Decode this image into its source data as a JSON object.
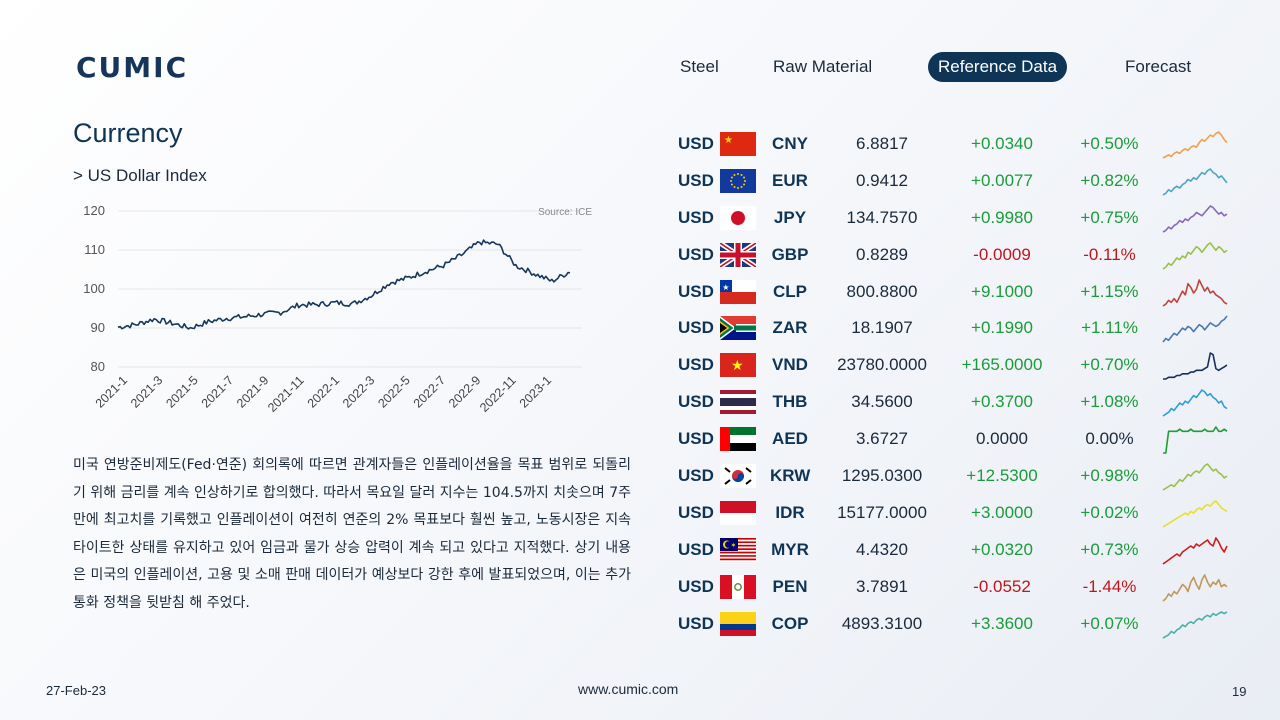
{
  "brand": {
    "name": "CUMIC",
    "color": "#16355a"
  },
  "nav": {
    "items": [
      {
        "label": "Steel",
        "active": false
      },
      {
        "label": "Raw Material",
        "active": false
      },
      {
        "label": "Reference Data",
        "active": true
      },
      {
        "label": "Forecast",
        "active": false
      }
    ]
  },
  "section": {
    "title": "Currency",
    "subtitle": "> US Dollar Index"
  },
  "chart_data": {
    "type": "line",
    "title": "",
    "source": "Source: ICE",
    "xlabel": "",
    "ylabel": "",
    "ylim": [
      80,
      120
    ],
    "yticks": [
      "80",
      "90",
      "100",
      "110",
      "120"
    ],
    "xticks": [
      "2021-1",
      "2021-3",
      "2021-5",
      "2021-7",
      "2021-9",
      "2021-11",
      "2022-1",
      "2022-3",
      "2022-5",
      "2022-7",
      "2022-9",
      "2022-11",
      "2023-1"
    ],
    "grid": true,
    "color": "#16385a",
    "series": [
      {
        "name": "",
        "x": [
          "2021-01",
          "2021-02",
          "2021-03",
          "2021-04",
          "2021-05",
          "2021-06",
          "2021-07",
          "2021-08",
          "2021-09",
          "2021-10",
          "2021-11",
          "2021-12",
          "2022-01",
          "2022-02",
          "2022-03",
          "2022-04",
          "2022-05",
          "2022-06",
          "2022-07",
          "2022-08",
          "2022-09",
          "2022-10",
          "2022-11",
          "2022-12",
          "2023-01",
          "2023-02"
        ],
        "values": [
          90.2,
          90.9,
          92.3,
          91.2,
          90.0,
          91.6,
          92.5,
          92.9,
          93.5,
          94.0,
          95.9,
          96.0,
          96.5,
          96.2,
          98.3,
          101.5,
          102.8,
          104.5,
          106.0,
          108.7,
          112.0,
          111.5,
          106.0,
          104.0,
          102.0,
          104.5
        ]
      }
    ]
  },
  "body_text": "미국 연방준비제도(Fed·연준) 회의록에 따르면 관계자들은 인플레이션율을 목표 범위로 되돌리기 위해 금리를 계속 인상하기로 합의했다. 따라서 목요일 달러 지수는 104.5까지 치솟으며 7주 만에 최고치를 기록했고 인플레이션이 여전히 연준의 2% 목표보다 훨씬 높고, 노동시장은 지속 타이트한 상태를 유지하고 있어 임금과 물가 상승 압력이 계속 되고 있다고 지적했다. 상기 내용은 미국의 인플레이션, 고용 및 소매 판매 데이터가 예상보다 강한 후에 발표되었으며, 이는 추가 통화 정책을 뒷받침 해 주었다.",
  "colors": {
    "up": "#1a9c3a",
    "down": "#c0161b",
    "neutral": "#1b2a3a"
  },
  "fx": [
    {
      "base": "USD",
      "quote": "CNY",
      "flag": "cn",
      "rate": "6.8817",
      "change": "+0.0340",
      "pct": "+0.50%",
      "trend": "up",
      "spark_color": "#f0a04b",
      "spark": [
        2,
        3,
        4,
        3,
        5,
        6,
        5,
        7,
        8,
        7,
        9,
        10,
        9,
        12,
        14,
        13,
        15,
        17,
        16,
        18,
        19,
        17,
        14,
        12
      ]
    },
    {
      "base": "USD",
      "quote": "EUR",
      "flag": "eu",
      "rate": "0.9412",
      "change": "+0.0077",
      "pct": "+0.82%",
      "trend": "up",
      "spark_color": "#4aa6c6",
      "spark": [
        3,
        4,
        6,
        5,
        7,
        8,
        7,
        9,
        10,
        12,
        11,
        13,
        12,
        14,
        16,
        15,
        17,
        18,
        16,
        15,
        13,
        14,
        12,
        10
      ]
    },
    {
      "base": "USD",
      "quote": "JPY",
      "flag": "jp",
      "rate": "134.7570",
      "change": "+0.9980",
      "pct": "+0.75%",
      "trend": "up",
      "spark_color": "#8a68b8",
      "spark": [
        2,
        3,
        5,
        4,
        6,
        7,
        9,
        8,
        10,
        9,
        11,
        12,
        14,
        13,
        12,
        14,
        16,
        18,
        17,
        15,
        13,
        14,
        12,
        13
      ]
    },
    {
      "base": "USD",
      "quote": "GBP",
      "flag": "gb",
      "rate": "0.8289",
      "change": "-0.0009",
      "pct": "-0.11%",
      "trend": "down",
      "spark_color": "#9ac04a",
      "spark": [
        3,
        4,
        6,
        5,
        7,
        9,
        8,
        10,
        9,
        12,
        11,
        13,
        15,
        14,
        12,
        14,
        16,
        17,
        15,
        13,
        15,
        14,
        12,
        13
      ]
    },
    {
      "base": "USD",
      "quote": "CLP",
      "flag": "cl",
      "rate": "800.8800",
      "change": "+9.1000",
      "pct": "+1.15%",
      "trend": "up",
      "spark_color": "#c0443b",
      "spark": [
        4,
        5,
        7,
        6,
        8,
        6,
        9,
        12,
        10,
        16,
        14,
        11,
        13,
        18,
        15,
        12,
        14,
        11,
        12,
        10,
        9,
        8,
        6,
        5
      ]
    },
    {
      "base": "USD",
      "quote": "ZAR",
      "flag": "za",
      "rate": "18.1907",
      "change": "+0.1990",
      "pct": "+1.11%",
      "trend": "up",
      "spark_color": "#4a78b0",
      "spark": [
        3,
        5,
        4,
        6,
        8,
        7,
        9,
        11,
        10,
        12,
        11,
        9,
        11,
        13,
        12,
        10,
        12,
        14,
        13,
        12,
        13,
        15,
        16,
        18
      ]
    },
    {
      "base": "USD",
      "quote": "VND",
      "flag": "vn",
      "rate": "23780.0000",
      "change": "+165.0000",
      "pct": "+0.70%",
      "trend": "up",
      "spark_color": "#17305a",
      "spark": [
        4,
        4,
        5,
        5,
        5,
        6,
        6,
        7,
        7,
        7,
        8,
        8,
        9,
        9,
        9,
        10,
        11,
        19,
        18,
        10,
        9,
        10,
        11,
        12
      ]
    },
    {
      "base": "USD",
      "quote": "THB",
      "flag": "th",
      "rate": "34.5600",
      "change": "+0.3700",
      "pct": "+1.08%",
      "trend": "up",
      "spark_color": "#2a9fd8",
      "spark": [
        4,
        5,
        6,
        8,
        7,
        9,
        11,
        10,
        12,
        11,
        13,
        15,
        14,
        16,
        18,
        17,
        15,
        16,
        14,
        13,
        11,
        12,
        9,
        8
      ]
    },
    {
      "base": "USD",
      "quote": "AED",
      "flag": "ae",
      "rate": "3.6727",
      "change": "0.0000",
      "pct": "0.00%",
      "trend": "neutral",
      "spark_color": "#1e9e36",
      "spark": [
        2,
        2,
        12,
        12,
        12,
        12,
        13,
        12,
        12,
        12,
        13,
        12,
        12,
        12,
        12,
        13,
        12,
        12,
        12,
        14,
        12,
        12,
        13,
        12
      ]
    },
    {
      "base": "USD",
      "quote": "KRW",
      "flag": "kr",
      "rate": "1295.0300",
      "change": "+12.5300",
      "pct": "+0.98%",
      "trend": "up",
      "spark_color": "#9ac04a",
      "spark": [
        3,
        4,
        5,
        6,
        5,
        7,
        9,
        8,
        10,
        12,
        11,
        13,
        14,
        13,
        15,
        17,
        18,
        16,
        14,
        15,
        13,
        12,
        10,
        11
      ]
    },
    {
      "base": "USD",
      "quote": "IDR",
      "flag": "id",
      "rate": "15177.0000",
      "change": "+3.0000",
      "pct": "+0.02%",
      "trend": "up",
      "spark_color": "#e8e02a",
      "spark": [
        3,
        4,
        5,
        6,
        7,
        8,
        9,
        10,
        11,
        10,
        12,
        11,
        13,
        14,
        13,
        15,
        16,
        15,
        17,
        18,
        16,
        14,
        13,
        12
      ]
    },
    {
      "base": "USD",
      "quote": "MYR",
      "flag": "my",
      "rate": "4.4320",
      "change": "+0.0320",
      "pct": "+0.73%",
      "trend": "up",
      "spark_color": "#c8201f",
      "spark": [
        3,
        4,
        5,
        6,
        7,
        8,
        7,
        9,
        10,
        11,
        12,
        11,
        13,
        12,
        13,
        14,
        15,
        13,
        12,
        16,
        14,
        11,
        9,
        12
      ]
    },
    {
      "base": "USD",
      "quote": "PEN",
      "flag": "pe",
      "rate": "3.7891",
      "change": "-0.0552",
      "pct": "-1.44%",
      "trend": "down",
      "spark_color": "#c09858",
      "spark": [
        6,
        7,
        9,
        8,
        10,
        9,
        11,
        13,
        12,
        10,
        14,
        16,
        13,
        11,
        15,
        17,
        14,
        12,
        14,
        13,
        15,
        12,
        13,
        12
      ]
    },
    {
      "base": "USD",
      "quote": "COP",
      "flag": "co",
      "rate": "4893.3100",
      "change": "+3.3600",
      "pct": "+0.07%",
      "trend": "up",
      "spark_color": "#4ab0a8",
      "spark": [
        3,
        4,
        5,
        7,
        6,
        8,
        9,
        11,
        10,
        12,
        13,
        12,
        14,
        15,
        14,
        16,
        17,
        16,
        18,
        17,
        18,
        19,
        18,
        19
      ]
    }
  ],
  "footer": {
    "date": "27-Feb-23",
    "url": "www.cumic.com",
    "page": "19"
  }
}
